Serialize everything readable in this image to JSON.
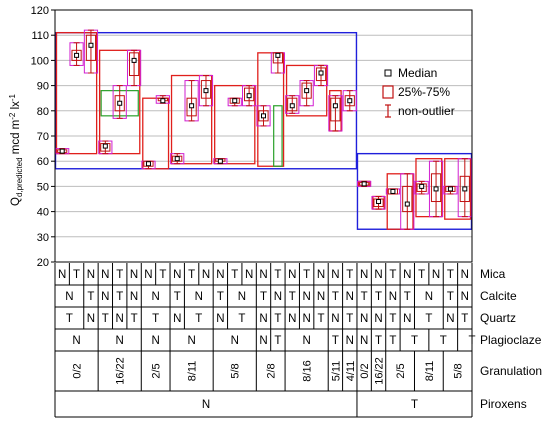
{
  "chart_data": {
    "type": "box",
    "y_axis": {
      "label_main": "Q",
      "label_sub": "d,predicted",
      "label_unit": " mcd m",
      "label_sup1": "-2",
      "label_mid": " lx",
      "label_sup2": "-1",
      "ylim": [
        20,
        120
      ],
      "ticks": [
        20,
        30,
        40,
        50,
        60,
        70,
        80,
        90,
        100,
        110,
        120
      ],
      "grid": true
    },
    "legend": {
      "position": "right",
      "entries": [
        {
          "label": "Median",
          "symbol": "square"
        },
        {
          "label": "25%-75%",
          "symbol": "box"
        },
        {
          "label": "non-outlier",
          "symbol": "whisker"
        }
      ]
    },
    "group_boxes": [
      {
        "piroxens": "N",
        "color": "#1f1fdb",
        "range": [
          57,
          111
        ]
      },
      {
        "piroxens": "T",
        "color": "#1f1fdb",
        "range": [
          33,
          63
        ]
      }
    ],
    "granulation_boxes": [
      {
        "label": "0/2",
        "color": "#e0201c",
        "range": [
          63,
          111
        ]
      },
      {
        "label": "16/22",
        "color": "#e0201c",
        "range": [
          63,
          104
        ]
      },
      {
        "label": "2/5",
        "color": "#e0201c",
        "range": [
          57,
          85
        ]
      },
      {
        "label": "8/11",
        "color": "#e0201c",
        "range": [
          59,
          94
        ]
      },
      {
        "label": "5/8",
        "color": "#e0201c",
        "range": [
          59,
          90
        ]
      },
      {
        "label": "2/8",
        "color": "#e0201c",
        "range": [
          58,
          103
        ]
      },
      {
        "label": "8/16",
        "color": "#e0201c",
        "range": [
          78,
          98
        ]
      },
      {
        "label": "5/11",
        "color": "#e0201c",
        "range": [
          72,
          88
        ]
      },
      {
        "label": "T 0/2",
        "color": "#e0201c",
        "range": [
          50,
          52
        ]
      },
      {
        "label": "T 16/22",
        "color": "#e0201c",
        "range": [
          41,
          46
        ]
      },
      {
        "label": "T 2/5",
        "color": "#e0201c",
        "range": [
          33,
          55
        ]
      },
      {
        "label": "T 8/11",
        "color": "#e0201c",
        "range": [
          38,
          61
        ]
      },
      {
        "label": "T 5/8",
        "color": "#e0201c",
        "range": [
          37,
          61
        ]
      }
    ],
    "plagioclase_boxes": [
      {
        "color": "#2aa02a",
        "range": [
          78,
          88
        ]
      },
      {
        "color": "#2aa02a",
        "range": [
          58,
          82
        ]
      }
    ],
    "boxes": [
      {
        "col": 0,
        "median": 64,
        "q1": 63.5,
        "q3": 64.5,
        "min": 63,
        "max": 65
      },
      {
        "col": 1,
        "median": 102,
        "q1": 100,
        "q3": 104,
        "min": 98,
        "max": 107
      },
      {
        "col": 2,
        "median": 106,
        "q1": 100,
        "q3": 110,
        "min": 95,
        "max": 112
      },
      {
        "col": 3,
        "median": 66,
        "q1": 64,
        "q3": 67,
        "min": 63,
        "max": 68
      },
      {
        "col": 4,
        "median": 83,
        "q1": 80,
        "q3": 86,
        "min": 77,
        "max": 90
      },
      {
        "col": 5,
        "median": 100,
        "q1": 94,
        "q3": 103,
        "min": 90,
        "max": 104
      },
      {
        "col": 6,
        "median": 59,
        "q1": 58,
        "q3": 60,
        "min": 57,
        "max": 60
      },
      {
        "col": 7,
        "median": 84,
        "q1": 84,
        "q3": 85,
        "min": 83,
        "max": 86
      },
      {
        "col": 8,
        "median": 61,
        "q1": 60,
        "q3": 62,
        "min": 59,
        "max": 63
      },
      {
        "col": 9,
        "median": 82,
        "q1": 78,
        "q3": 85,
        "min": 76,
        "max": 92
      },
      {
        "col": 10,
        "median": 88,
        "q1": 85,
        "q3": 92,
        "min": 82,
        "max": 94
      },
      {
        "col": 11,
        "median": 60,
        "q1": 60,
        "q3": 61,
        "min": 59,
        "max": 61
      },
      {
        "col": 12,
        "median": 84,
        "q1": 83,
        "q3": 85,
        "min": 82,
        "max": 85
      },
      {
        "col": 13,
        "median": 86,
        "q1": 84,
        "q3": 89,
        "min": 82,
        "max": 90
      },
      {
        "col": 14,
        "median": 78,
        "q1": 76,
        "q3": 80,
        "min": 74,
        "max": 82
      },
      {
        "col": 15,
        "median": 102,
        "q1": 99,
        "q3": 103,
        "min": 95,
        "max": 103
      },
      {
        "col": 16,
        "median": 82,
        "q1": 80,
        "q3": 85,
        "min": 79,
        "max": 86
      },
      {
        "col": 17,
        "median": 88,
        "q1": 85,
        "q3": 91,
        "min": 82,
        "max": 92
      },
      {
        "col": 18,
        "median": 95,
        "q1": 92,
        "q3": 97,
        "min": 90,
        "max": 98
      },
      {
        "col": 19,
        "median": 82,
        "q1": 76,
        "q3": 85,
        "min": 72,
        "max": 86
      },
      {
        "col": 20,
        "median": 84,
        "q1": 82,
        "q3": 86,
        "min": 80,
        "max": 88
      },
      {
        "col": 21,
        "median": 51,
        "q1": 50.5,
        "q3": 51.5,
        "min": 50,
        "max": 52
      },
      {
        "col": 22,
        "median": 44,
        "q1": 42,
        "q3": 45,
        "min": 41,
        "max": 46
      },
      {
        "col": 23,
        "median": 48,
        "q1": 47,
        "q3": 49,
        "min": 47,
        "max": 49
      },
      {
        "col": 24,
        "median": 43,
        "q1": 40,
        "q3": 50,
        "min": 33,
        "max": 55
      },
      {
        "col": 25,
        "median": 50,
        "q1": 48,
        "q3": 51,
        "min": 47,
        "max": 52
      },
      {
        "col": 26,
        "median": 49,
        "q1": 44,
        "q3": 55,
        "min": 38,
        "max": 60
      },
      {
        "col": 27,
        "median": 49,
        "q1": 48,
        "q3": 50,
        "min": 47,
        "max": 50
      },
      {
        "col": 28,
        "median": 49,
        "q1": 44,
        "q3": 54,
        "min": 38,
        "max": 61
      }
    ]
  },
  "factor_table": {
    "rows": [
      {
        "name": "Mica",
        "cells": [
          {
            "span": 1,
            "text": "N"
          },
          {
            "span": 1,
            "text": "T"
          },
          {
            "span": 1,
            "text": "N"
          },
          {
            "span": 1,
            "text": "N"
          },
          {
            "span": 1,
            "text": "T"
          },
          {
            "span": 1,
            "text": "N"
          },
          {
            "span": 1,
            "text": "N"
          },
          {
            "span": 1,
            "text": "T"
          },
          {
            "span": 1,
            "text": "N"
          },
          {
            "span": 1,
            "text": "T"
          },
          {
            "span": 1,
            "text": "N"
          },
          {
            "span": 1,
            "text": "N"
          },
          {
            "span": 1,
            "text": "T"
          },
          {
            "span": 1,
            "text": "N"
          },
          {
            "span": 1,
            "text": "N"
          },
          {
            "span": 1,
            "text": "T"
          },
          {
            "span": 1,
            "text": "N"
          },
          {
            "span": 1,
            "text": "T"
          },
          {
            "span": 1,
            "text": "N"
          },
          {
            "span": 1,
            "text": "N"
          },
          {
            "span": 1,
            "text": "T"
          },
          {
            "span": 1,
            "text": "N"
          },
          {
            "span": 1,
            "text": "N"
          },
          {
            "span": 1,
            "text": "T"
          },
          {
            "span": 1,
            "text": "N"
          },
          {
            "span": 1,
            "text": "T"
          },
          {
            "span": 1,
            "text": "N"
          },
          {
            "span": 1,
            "text": "T"
          },
          {
            "span": 1,
            "text": "N"
          }
        ]
      },
      {
        "name": "Calcite",
        "cells": [
          {
            "span": 2,
            "text": "N"
          },
          {
            "span": 1,
            "text": "T"
          },
          {
            "span": 1,
            "text": "N"
          },
          {
            "span": 1,
            "text": "T"
          },
          {
            "span": 1,
            "text": "N"
          },
          {
            "span": 2,
            "text": "N"
          },
          {
            "span": 1,
            "text": "T"
          },
          {
            "span": 2,
            "text": "N"
          },
          {
            "span": 1,
            "text": "T"
          },
          {
            "span": 2,
            "text": "N"
          },
          {
            "span": 1,
            "text": "T"
          },
          {
            "span": 1,
            "text": "N"
          },
          {
            "span": 1,
            "text": "T"
          },
          {
            "span": 1,
            "text": "N"
          },
          {
            "span": 1,
            "text": "N"
          },
          {
            "span": 1,
            "text": "T"
          },
          {
            "span": 1,
            "text": "N"
          },
          {
            "span": 1,
            "text": "T"
          },
          {
            "span": 1,
            "text": "T"
          },
          {
            "span": 1,
            "text": "N"
          },
          {
            "span": 1,
            "text": "T"
          },
          {
            "span": 2,
            "text": "N"
          },
          {
            "span": 1,
            "text": "T"
          },
          {
            "span": 1,
            "text": "N"
          }
        ]
      },
      {
        "name": "Quartz",
        "cells": [
          {
            "span": 2,
            "text": "T"
          },
          {
            "span": 1,
            "text": "N"
          },
          {
            "span": 1,
            "text": "T"
          },
          {
            "span": 1,
            "text": "N"
          },
          {
            "span": 1,
            "text": "T"
          },
          {
            "span": 2,
            "text": "T"
          },
          {
            "span": 1,
            "text": "N"
          },
          {
            "span": 2,
            "text": "T"
          },
          {
            "span": 1,
            "text": "N"
          },
          {
            "span": 2,
            "text": "T"
          },
          {
            "span": 1,
            "text": "N"
          },
          {
            "span": 1,
            "text": "T"
          },
          {
            "span": 1,
            "text": "N"
          },
          {
            "span": 1,
            "text": "N"
          },
          {
            "span": 1,
            "text": "T"
          },
          {
            "span": 1,
            "text": "N"
          },
          {
            "span": 1,
            "text": "T"
          },
          {
            "span": 1,
            "text": "N"
          },
          {
            "span": 1,
            "text": "N"
          },
          {
            "span": 1,
            "text": "T"
          },
          {
            "span": 1,
            "text": "N"
          },
          {
            "span": 2,
            "text": "T"
          },
          {
            "span": 1,
            "text": "N"
          },
          {
            "span": 1,
            "text": "T"
          }
        ]
      },
      {
        "name": "Plagioclaze",
        "cells": [
          {
            "span": 3,
            "text": "N"
          },
          {
            "span": 3,
            "text": "N"
          },
          {
            "span": 2,
            "text": "N"
          },
          {
            "span": 3,
            "text": "N"
          },
          {
            "span": 3,
            "text": "N"
          },
          {
            "span": 1,
            "text": "N"
          },
          {
            "span": 1,
            "text": "T"
          },
          {
            "span": 3,
            "text": "N"
          },
          {
            "span": 1,
            "text": "T"
          },
          {
            "span": 1,
            "text": "N"
          },
          {
            "span": 1,
            "text": "N"
          },
          {
            "span": 1,
            "text": "T"
          },
          {
            "span": 1,
            "text": "T"
          },
          {
            "span": 2,
            "text": "T"
          },
          {
            "span": 2,
            "text": "T"
          },
          {
            "span": 2,
            "text": "T"
          }
        ]
      },
      {
        "name": "Granulation",
        "tall": true,
        "cells": [
          {
            "span": 3,
            "text": "0/2"
          },
          {
            "span": 3,
            "text": "16/22"
          },
          {
            "span": 2,
            "text": "2/5"
          },
          {
            "span": 3,
            "text": "8/11"
          },
          {
            "span": 3,
            "text": "5/8"
          },
          {
            "span": 2,
            "text": "2/8"
          },
          {
            "span": 3,
            "text": "8/16"
          },
          {
            "span": 1,
            "text": "5/11"
          },
          {
            "span": 1,
            "text": "4/11"
          },
          {
            "span": 1,
            "text": "0/2"
          },
          {
            "span": 1,
            "text": "16/22"
          },
          {
            "span": 2,
            "text": "2/5"
          },
          {
            "span": 2,
            "text": "8/11"
          },
          {
            "span": 2,
            "text": "5/8"
          }
        ]
      },
      {
        "name": "Piroxens",
        "cells": [
          {
            "span": 21,
            "text": "N"
          },
          {
            "span": 8,
            "text": "T"
          }
        ]
      }
    ]
  }
}
